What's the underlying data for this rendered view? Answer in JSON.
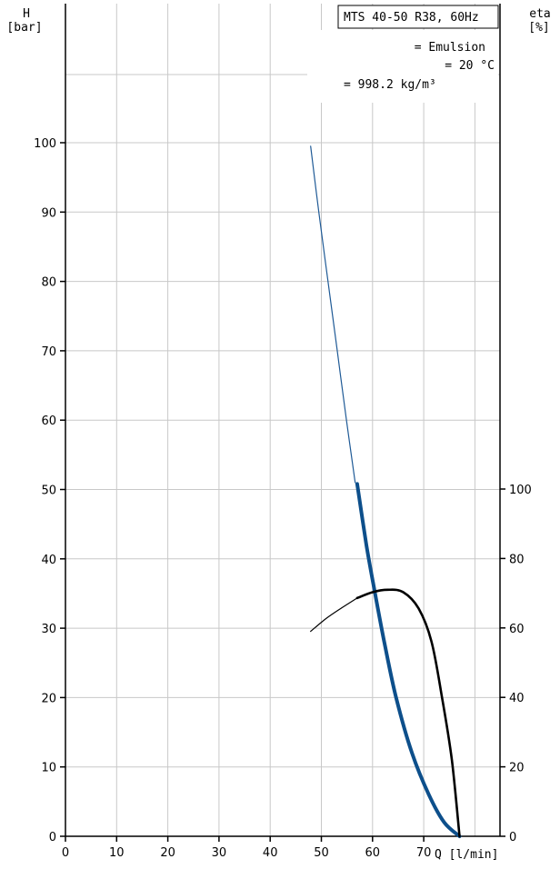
{
  "chart_data": {
    "type": "line",
    "title": "MTS 40-50 R38, 60Hz",
    "info": {
      "medium": "= Emulsion",
      "temperature": "= 20  °C",
      "density": "= 998.2 kg/m³"
    },
    "y_left_label": [
      "H",
      "[bar]"
    ],
    "y_right_label": [
      "eta",
      "[%]"
    ],
    "x_label": "Q [l/min]",
    "x_ticks": [
      0,
      10,
      20,
      30,
      40,
      50,
      60,
      70
    ],
    "y_left_ticks": [
      0,
      10,
      20,
      30,
      40,
      50,
      60,
      70,
      80,
      90,
      100
    ],
    "y_right_ticks": [
      0,
      20,
      40,
      60,
      80,
      100
    ],
    "xlim": [
      0,
      85
    ],
    "ylim_left": [
      0,
      100
    ],
    "ylim_right": [
      0,
      100
    ],
    "grid": true,
    "series": [
      {
        "id": "head-thin",
        "axis": "left",
        "color": "#1f5a96",
        "points": [
          [
            47.9,
            99.5
          ],
          [
            49.5,
            90
          ],
          [
            51.3,
            80
          ],
          [
            53.1,
            70
          ],
          [
            54.9,
            60
          ],
          [
            56.6,
            51
          ]
        ]
      },
      {
        "id": "head-thick",
        "axis": "left",
        "color": "#0d4f8b",
        "points": [
          [
            57.0,
            50.8
          ],
          [
            58.8,
            42
          ],
          [
            60.5,
            35
          ],
          [
            62.3,
            28
          ],
          [
            64.6,
            20
          ],
          [
            67.7,
            12
          ],
          [
            71.0,
            6
          ],
          [
            74.0,
            2
          ],
          [
            77.0,
            0
          ]
        ]
      },
      {
        "id": "efficiency-thin",
        "axis": "right",
        "color": "#000000",
        "points": [
          [
            47.9,
            59
          ],
          [
            51.0,
            62.8
          ],
          [
            54.0,
            65.8
          ],
          [
            57.0,
            68.6
          ]
        ]
      },
      {
        "id": "efficiency-thick",
        "axis": "right",
        "color": "#000000",
        "points": [
          [
            57.0,
            68.6
          ],
          [
            60.0,
            70.3
          ],
          [
            63.0,
            71
          ],
          [
            66.0,
            70.3
          ],
          [
            69.0,
            65.6
          ],
          [
            71.5,
            56.2
          ],
          [
            73.5,
            40.6
          ],
          [
            75.5,
            21.9
          ],
          [
            77.0,
            0
          ]
        ]
      }
    ]
  }
}
